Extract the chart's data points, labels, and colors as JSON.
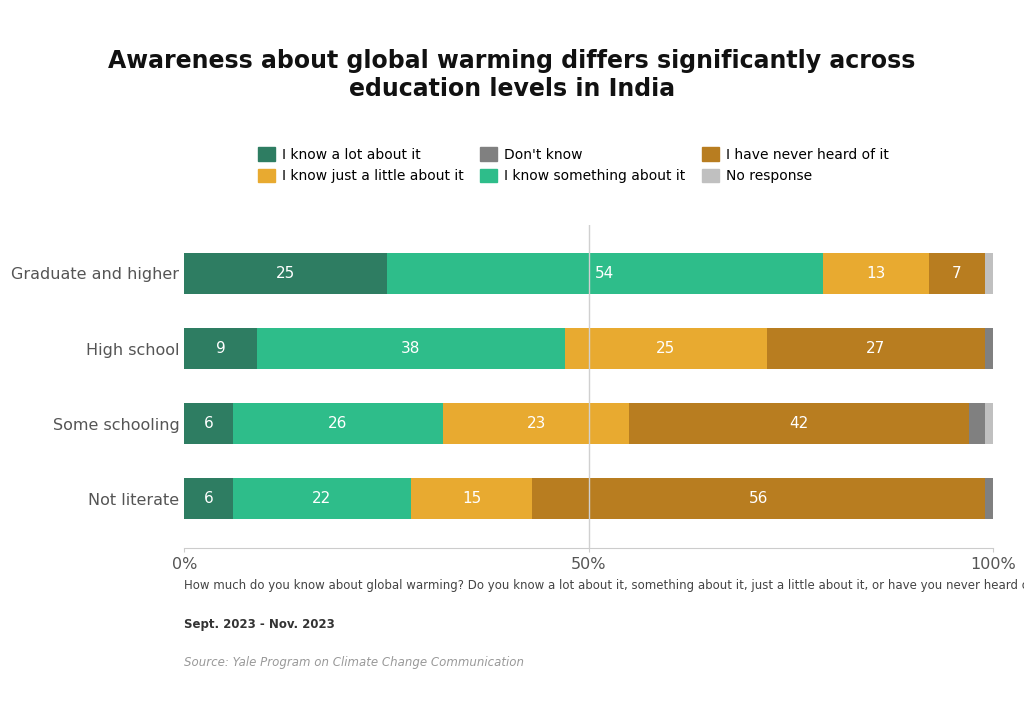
{
  "title": "Awareness about global warming differs significantly across\neducation levels in India",
  "categories": [
    "Graduate and higher",
    "High school",
    "Some schooling",
    "Not literate"
  ],
  "series": [
    {
      "label": "I know a lot about it",
      "values": [
        25,
        9,
        6,
        6
      ],
      "color": "#2e7d62"
    },
    {
      "label": "I know something about it",
      "values": [
        54,
        38,
        26,
        22
      ],
      "color": "#2ebd8a"
    },
    {
      "label": "I know just a little about it",
      "values": [
        13,
        25,
        23,
        15
      ],
      "color": "#e8aa30"
    },
    {
      "label": "I have never heard of it",
      "values": [
        7,
        27,
        42,
        56
      ],
      "color": "#b87d20"
    },
    {
      "label": "Don't know",
      "values": [
        0,
        1,
        2,
        1
      ],
      "color": "#808080"
    },
    {
      "label": "No response",
      "values": [
        1,
        1,
        2,
        1
      ],
      "color": "#c0c0c0"
    }
  ],
  "xlim": [
    0,
    100
  ],
  "xticks": [
    0,
    50,
    100
  ],
  "xticklabels": [
    "0%",
    "50%",
    "100%"
  ],
  "footnote": "How much do you know about global warming? Do you know a lot about it, something about it, just a little about it, or have you never heard of it?",
  "date_label": "Sept. 2023 - Nov. 2023",
  "source_label": "Source: Yale Program on Climate Change Communication",
  "background_color": "#ffffff",
  "bar_height": 0.55,
  "title_fontsize": 17,
  "tick_fontsize": 11.5,
  "label_fontsize": 11,
  "legend_fontsize": 10,
  "vline_color": "#d0d0d0",
  "vline_positions": [
    50
  ]
}
